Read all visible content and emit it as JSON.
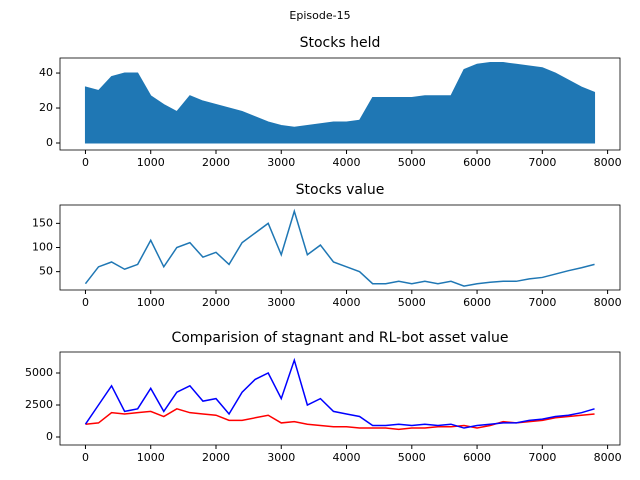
{
  "title": "Episode-15",
  "chart_data": [
    {
      "type": "area",
      "title": "Stocks held",
      "color": "#1f77b4",
      "x": [
        0,
        200,
        400,
        600,
        800,
        1000,
        1200,
        1400,
        1600,
        1800,
        2000,
        2200,
        2400,
        2600,
        2800,
        3000,
        3200,
        3400,
        3600,
        3800,
        4000,
        4200,
        4400,
        4600,
        4800,
        5000,
        5200,
        5400,
        5600,
        5800,
        6000,
        6200,
        6400,
        6600,
        6800,
        7000,
        7200,
        7400,
        7600,
        7800
      ],
      "values": [
        32,
        30,
        38,
        40,
        40,
        27,
        22,
        18,
        27,
        24,
        22,
        20,
        18,
        15,
        12,
        10,
        9,
        10,
        11,
        12,
        12,
        13,
        26,
        26,
        26,
        26,
        27,
        27,
        27,
        42,
        45,
        46,
        46,
        45,
        44,
        43,
        40,
        36,
        32,
        29
      ],
      "xlim": [
        -390,
        8190
      ],
      "xticks": [
        0,
        1000,
        2000,
        3000,
        4000,
        5000,
        6000,
        7000,
        8000
      ],
      "ylim": [
        -4,
        48.6
      ],
      "yticks": [
        0,
        20,
        40
      ]
    },
    {
      "type": "line",
      "title": "Stocks value",
      "color": "#1f77b4",
      "x": [
        0,
        200,
        400,
        600,
        800,
        1000,
        1200,
        1400,
        1600,
        1800,
        2000,
        2200,
        2400,
        2600,
        2800,
        3000,
        3200,
        3400,
        3600,
        3800,
        4000,
        4200,
        4400,
        4600,
        4800,
        5000,
        5200,
        5400,
        5600,
        5800,
        6000,
        6200,
        6400,
        6600,
        6800,
        7000,
        7200,
        7400,
        7600,
        7800
      ],
      "values": [
        25,
        60,
        70,
        55,
        65,
        115,
        60,
        100,
        110,
        80,
        90,
        65,
        110,
        130,
        150,
        85,
        175,
        85,
        105,
        70,
        60,
        50,
        25,
        25,
        30,
        25,
        30,
        25,
        30,
        20,
        25,
        28,
        30,
        30,
        35,
        38,
        45,
        52,
        58,
        65
      ],
      "xlim": [
        -390,
        8190
      ],
      "xticks": [
        0,
        1000,
        2000,
        3000,
        4000,
        5000,
        6000,
        7000,
        8000
      ],
      "ylim": [
        12,
        188
      ],
      "yticks": [
        50,
        100,
        150
      ]
    },
    {
      "type": "line",
      "title": "Comparision of stagnant and RL-bot asset value",
      "x": [
        0,
        200,
        400,
        600,
        800,
        1000,
        1200,
        1400,
        1600,
        1800,
        2000,
        2200,
        2400,
        2600,
        2800,
        3000,
        3200,
        3400,
        3600,
        3800,
        4000,
        4200,
        4400,
        4600,
        4800,
        5000,
        5200,
        5400,
        5600,
        5800,
        6000,
        6200,
        6400,
        6600,
        6800,
        7000,
        7200,
        7400,
        7600,
        7800
      ],
      "series": [
        {
          "color": "#ff0000",
          "values": [
            1000,
            1100,
            1900,
            1800,
            1900,
            2000,
            1600,
            2200,
            1900,
            1800,
            1700,
            1300,
            1300,
            1500,
            1700,
            1100,
            1200,
            1000,
            900,
            800,
            800,
            700,
            700,
            700,
            600,
            700,
            700,
            800,
            800,
            900,
            700,
            900,
            1200,
            1100,
            1200,
            1300,
            1500,
            1600,
            1700,
            1800
          ]
        },
        {
          "color": "#0000ff",
          "values": [
            1000,
            2500,
            4000,
            2000,
            2200,
            3800,
            2000,
            3500,
            4000,
            2800,
            3000,
            1800,
            3500,
            4500,
            5000,
            3000,
            6000,
            2500,
            3000,
            2000,
            1800,
            1600,
            900,
            900,
            1000,
            900,
            1000,
            900,
            1000,
            700,
            900,
            1000,
            1100,
            1100,
            1300,
            1400,
            1600,
            1700,
            1900,
            2200
          ]
        }
      ],
      "xlim": [
        -390,
        8190
      ],
      "xticks": [
        0,
        1000,
        2000,
        3000,
        4000,
        5000,
        6000,
        7000,
        8000
      ],
      "ylim": [
        -625,
        6640
      ],
      "yticks": [
        0,
        2500,
        5000
      ]
    }
  ]
}
